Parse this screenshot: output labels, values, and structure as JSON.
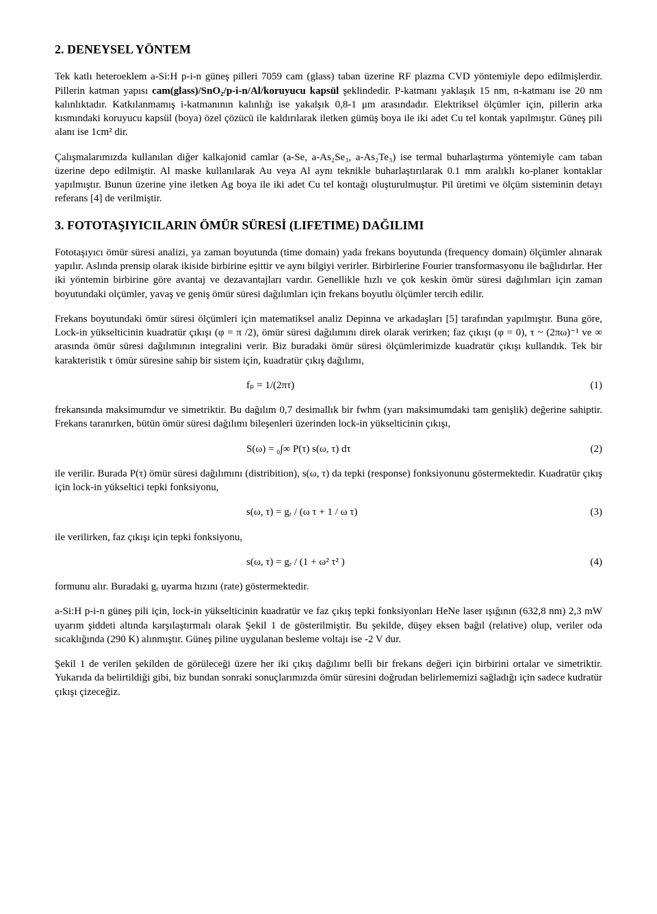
{
  "section1": {
    "number": "2.",
    "title": "DENEYSEL YÖNTEM",
    "p1_a": "Tek katlı heteroeklem a-Si:H p-i-n güneş pilleri 7059 cam (glass) taban üzerine RF plazma CVD yöntemiyle depo edilmişlerdir. Pillerin katman yapısı ",
    "p1_bold": "cam(glass)/SnO₂/p-i-n/Al/koruyucu kapsül",
    "p1_b": " şeklindedir. P-katmanı yaklaşık 15 nm, n-katmanı ise 20 nm kalınlıktadır. Katkılanmamış i-katmanının kalınlığı ise yakalşık 0,8-1 μm arasındadır. Elektriksel ölçümler için, pillerin arka kısmındaki koruyucu kapsül (boya) özel çözücü ile kaldırılarak iletken gümüş boya ile iki adet Cu tel kontak yapılmıştır. Güneş pili alanı ise 1cm² dir.",
    "p2": "Çalışmalarımızda kullanılan diğer kalkajonid camlar (a-Se, a-As₂Se₃, a-As₂Te₃) ise termal buharlaştırma yöntemiyle cam taban üzerine depo edilmiştir. Al maske kullanılarak Au veya Al aynı teknikle buharlaştırılarak 0.1 mm aralıklı ko-planer kontaklar yapılmıştır. Bunun üzerine yine iletken Ag boya ile iki adet Cu tel kontağı oluşturulmuştur. Pil üretimi ve ölçüm sisteminin detayı referans [4] de verilmiştir."
  },
  "section2": {
    "number": "3.",
    "title": "FOTOTAŞIYICILARIN ÖMÜR SÜRESİ (LIFETIME) DAĞILIMI",
    "p1": "Fototaşıyıcı ömür süresi analizi, ya zaman boyutunda (time domain) yada frekans boyutunda (frequency domain) ölçümler alınarak yapılır. Aslında prensip olarak ikiside birbirine eşittir ve aynı bilgiyi verirler. Birbirlerine Fourier transformasyonu ile bağlıdırlar. Her iki yöntemin birbirine göre avantaj ve dezavantajları vardır. Genellikle hızlı ve çok keskin ömür süresi dağılımları için zaman boyutundaki olçümler, yavaş ve geniş ömür süresi dağılımları için frekans boyutlu ölçümler tercih edilir.",
    "p2": "Frekans boyutundaki ömür süresi ölçümleri için matematiksel analiz Depinna ve arkadaşları [5] tarafından yapılmıştır. Buna göre, Lock-in yükselticinin kuadratür çıkışı (φ = π /2), ömür süresi dağılımını direk olarak verirken; faz çıkışı (φ = 0), τ ~ (2πω)⁻¹ ve ∞ arasında ömür süresi dağılımının integralini verir. Biz buradaki ömür süresi ölçümlerimizde kuadratür çıkışı kullandık. Tek bir karakteristik τ ömür süresine sahip bir sistem için, kuadratür çıkış dağılımı,",
    "eq1": "fₚ = 1/(2πτ)",
    "eq1_num": "(1)",
    "p3": "frekansında maksimumdur ve simetriktir. Bu dağılım 0,7 desimallık bir fwhm (yarı maksimumdaki tam genişlik) değerine sahiptir. Frekans taranırken, bütün ömür süresi dağılımı bileşenleri üzerinden lock-in yükselticinin çıkışı,",
    "eq2": "S(ω) = ₀∫∞  P(τ) s(ω, τ) dτ",
    "eq2_num": "(2)",
    "p4": "ile verilir. Burada P(τ) ömür süresi dağılımını (distribition), s(ω, τ) da tepki (response) fonksiyonunu göstermektedir. Kuadratür çıkış için lock-in yükseltici tepki fonksiyonu,",
    "eq3": "s(ω, τ) = gᵣ / (ω τ + 1 / ω τ)",
    "eq3_num": "(3)",
    "p5": "ile verilirken, faz çıkışı için tepki fonksiyonu,",
    "eq4": "s(ω, τ) = gᵣ / (1 + ω² τ² )",
    "eq4_num": "(4)",
    "p6": "formunu alır. Buradaki gᵣ uyarma hızını (rate) göstermektedir.",
    "p7": "a-Si:H p-i-n güneş pili için, lock-in yükselticinin kuadratür ve faz çıkış tepki fonksiyonları HeNe laser ışığının (632,8 nm) 2,3 mW uyarım şiddeti altında karşılaştırmalı olarak Şekil 1 de gösterilmiştir. Bu şekilde, düşey eksen bağıl (relative) olup, veriler oda sıcaklığında (290 K) alınmıştır. Güneş piline uygulanan besleme voltajı ise -2 V dur.",
    "p8": "Şekil 1 de verilen şekilden de görüleceği üzere her iki çıkış dağılımı belli bir frekans değeri için birbirini ortalar ve simetriktir. Yukarıda da belirtildiği gibi, biz bundan sonraki sonuçlarımızda ömür süresini doğrudan belirlememizi sağladığı için sadece kudratür çıkışı çizeceğiz."
  }
}
